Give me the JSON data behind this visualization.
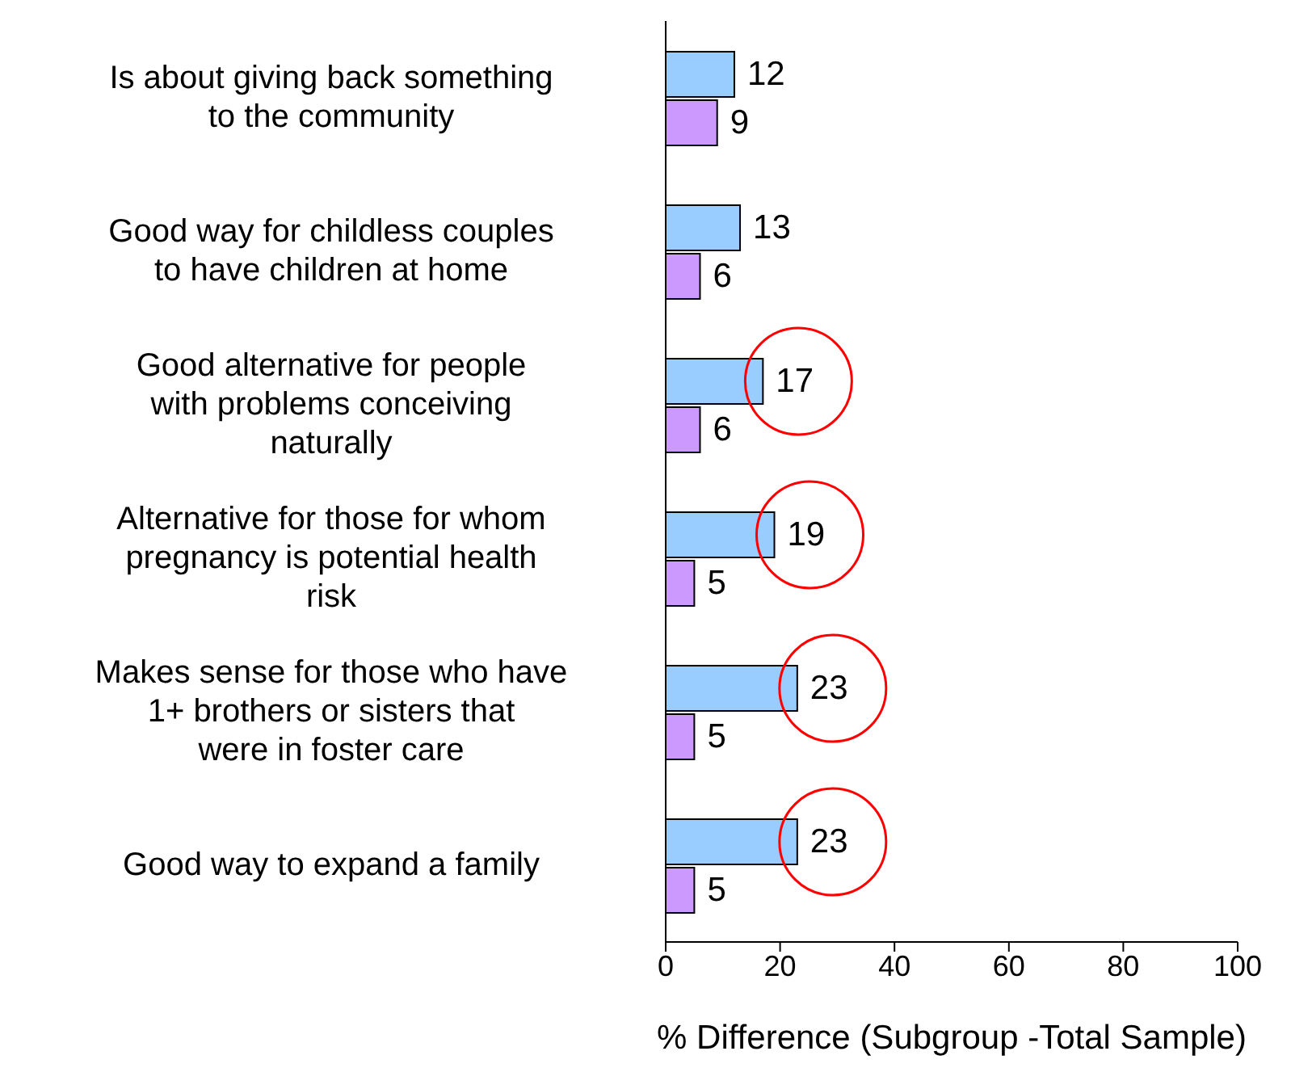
{
  "chart_data": {
    "type": "bar",
    "orientation": "horizontal",
    "xlabel": "% Difference  (Subgroup -Total Sample)",
    "categories": [
      "Is about giving back something to the community",
      "Good way for childless couples to have children at home",
      "Good alternative for people with problems conceiving naturally",
      "Alternative for those for whom pregnancy is potential health risk",
      "Makes sense for those who have 1+ brothers or sisters that were in foster care",
      "Good way to expand a family"
    ],
    "series": [
      {
        "color": "#99ccff",
        "values": [
          12,
          13,
          17,
          19,
          23,
          23
        ]
      },
      {
        "color": "#cc99ff",
        "values": [
          9,
          6,
          6,
          5,
          5,
          5
        ]
      }
    ],
    "xlim": [
      0,
      100
    ],
    "xticks": [
      0,
      20,
      40,
      60,
      80,
      100
    ],
    "data_labels": true,
    "grid": false,
    "legend": false
  }
}
